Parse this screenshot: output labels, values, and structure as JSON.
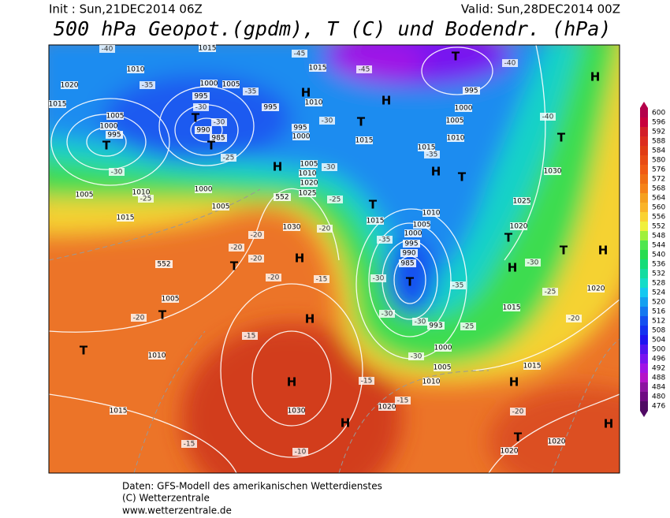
{
  "header": {
    "init": "Init : Sun,21DEC2014 06Z",
    "valid": "Valid: Sun,28DEC2014 00Z",
    "title": "500 hPa Geopot.(gpdm), T (C) und Bodendr. (hPa)"
  },
  "map": {
    "centers": [
      "T",
      "T",
      "T",
      "T",
      "H",
      "H",
      "T",
      "H",
      "H",
      "T",
      "H",
      "T",
      "T",
      "H",
      "T",
      "T",
      "T",
      "H",
      "H",
      "H",
      "T",
      "T",
      "H",
      "H",
      "T",
      "H",
      "H",
      "T"
    ],
    "isobar_labels": [
      "1020",
      "1015",
      "1010",
      "1005",
      "1000",
      "995",
      "1000",
      "995",
      "990",
      "985",
      "1005",
      "995",
      "1010",
      "995",
      "1000",
      "1015",
      "1015",
      "1010",
      "1005",
      "1000",
      "995",
      "1030",
      "1025",
      "1020",
      "1015",
      "1020",
      "1015",
      "1020",
      "1020",
      "1010",
      "1005",
      "1000",
      "995",
      "990",
      "985",
      "993",
      "1000",
      "1005",
      "1010",
      "1020",
      "1030",
      "1015",
      "1010",
      "1005",
      "1030",
      "1025",
      "1020",
      "1010",
      "1005",
      "1000",
      "1005",
      "1010",
      "1015",
      "1005",
      "1015",
      "1015",
      "1015",
      "552",
      "552"
    ],
    "temperature_labels": [
      "-40",
      "-45",
      "-45",
      "-40",
      "-35",
      "-35",
      "-30",
      "-30",
      "-30",
      "-30",
      "-25",
      "-30",
      "-25",
      "-25",
      "-20",
      "-20",
      "-20",
      "-20",
      "-20",
      "-15",
      "-20",
      "-15",
      "-30",
      "-30",
      "-35",
      "-30",
      "-25",
      "-30",
      "-35",
      "-35",
      "-40",
      "-30",
      "-25",
      "-20",
      "-15",
      "-15",
      "-20",
      "-15",
      "-10"
    ]
  },
  "colorbar": {
    "levels": [
      600,
      596,
      592,
      588,
      584,
      580,
      576,
      572,
      568,
      564,
      560,
      556,
      552,
      548,
      544,
      540,
      536,
      532,
      528,
      524,
      520,
      516,
      512,
      508,
      504,
      500,
      496,
      492,
      488,
      484,
      480,
      476
    ],
    "colors": [
      "#b4004a",
      "#c8003c",
      "#d21e28",
      "#dc2d1e",
      "#e03c14",
      "#e84b14",
      "#f05a14",
      "#f06e14",
      "#f58218",
      "#f5a01e",
      "#fab428",
      "#fad232",
      "#f0f03c",
      "#a0f03c",
      "#50e650",
      "#28dc50",
      "#14dc78",
      "#14dca0",
      "#14dcc8",
      "#14c8f0",
      "#14a0f0",
      "#1478f0",
      "#1450f0",
      "#1432f0",
      "#1e14f0",
      "#5014f0",
      "#7814f0",
      "#a014e6",
      "#b414c8",
      "#8c14a0",
      "#6e0a82",
      "#500a64"
    ]
  },
  "footer": [
    "Daten: GFS-Modell des amerikanischen Wetterdienstes",
    "(C) Wetterzentrale",
    "www.wetterzentrale.de"
  ]
}
